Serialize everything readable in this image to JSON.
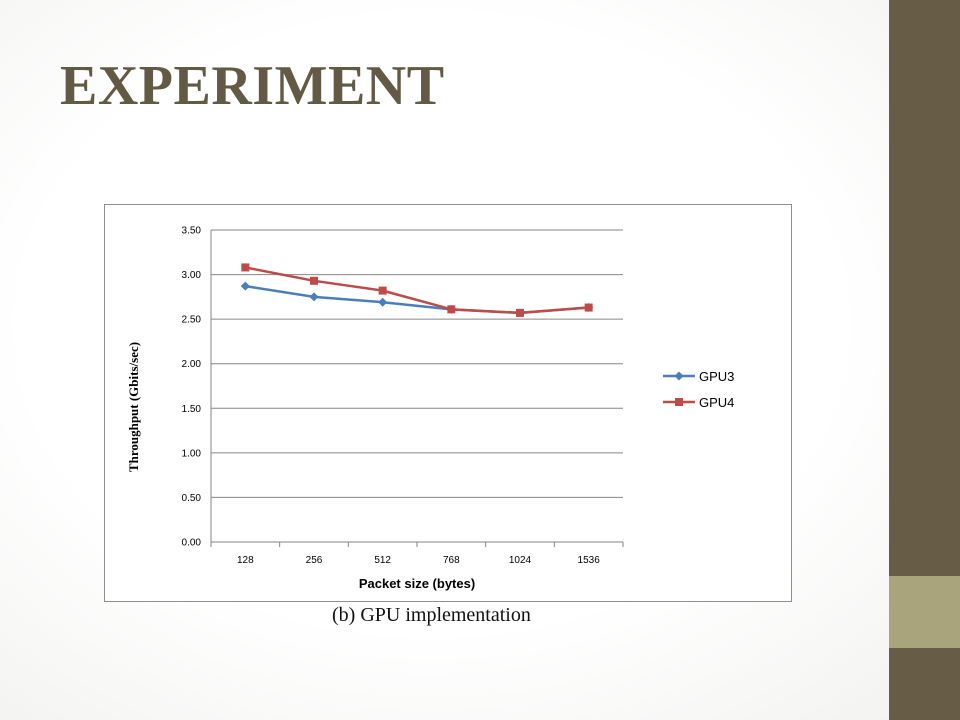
{
  "slide": {
    "title": "EXPERIMENT",
    "caption": "(b) GPU implementation"
  },
  "colors": {
    "title": "#625a45",
    "sidebar_top": "#675d47",
    "sidebar_mid": "#a9a47c",
    "sidebar_bottom": "#675d47",
    "gpu3": "#4a7ebb",
    "gpu4": "#be4b48"
  },
  "chart_data": {
    "type": "line",
    "title": "",
    "xlabel": "Packet size (bytes)",
    "ylabel": "Throughput (Gbits/sec)",
    "categories": [
      "128",
      "256",
      "512",
      "768",
      "1024",
      "1536"
    ],
    "ylim": [
      0,
      3.5
    ],
    "yticks": [
      "0.00",
      "0.50",
      "1.00",
      "1.50",
      "2.00",
      "2.50",
      "3.00",
      "3.50"
    ],
    "grid": true,
    "legend": "right",
    "series": [
      {
        "name": "GPU3",
        "marker": "diamond",
        "values": [
          2.87,
          2.75,
          2.69,
          2.61,
          2.57,
          2.63
        ]
      },
      {
        "name": "GPU4",
        "marker": "square",
        "values": [
          3.08,
          2.93,
          2.82,
          2.61,
          2.57,
          2.63
        ]
      }
    ]
  }
}
